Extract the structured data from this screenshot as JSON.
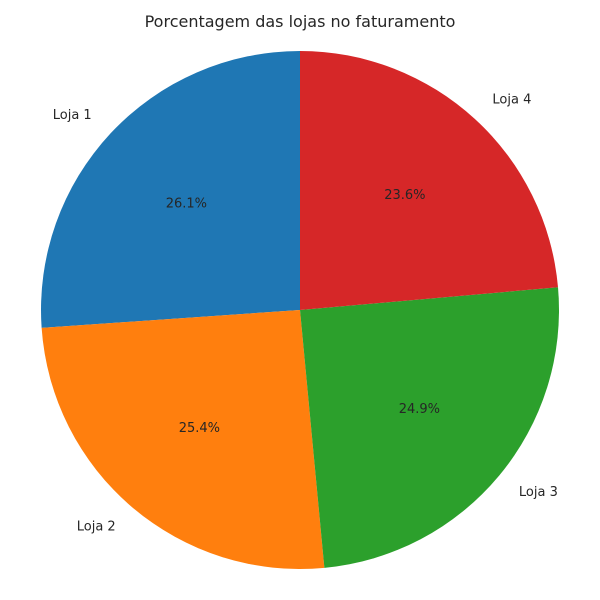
{
  "chart_data": {
    "type": "pie",
    "title": "Porcentagem das lojas no faturamento",
    "slices": [
      {
        "label": "Loja 1",
        "value": 26.1,
        "pct_label": "26.1%",
        "color": "#1f77b4"
      },
      {
        "label": "Loja 2",
        "value": 25.4,
        "pct_label": "25.4%",
        "color": "#ff7f0e"
      },
      {
        "label": "Loja 3",
        "value": 24.9,
        "pct_label": "24.9%",
        "color": "#2ca02c"
      },
      {
        "label": "Loja 4",
        "value": 23.6,
        "pct_label": "23.6%",
        "color": "#d62728"
      }
    ],
    "start_angle_deg": 90,
    "direction": "counterclockwise"
  }
}
